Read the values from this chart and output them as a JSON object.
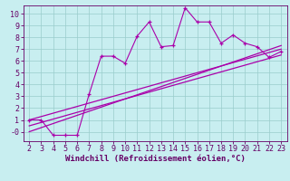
{
  "xlabel": "Windchill (Refroidissement éolien,°C)",
  "background_color": "#c8eef0",
  "line_color": "#aa00aa",
  "grid_color": "#99cccc",
  "spine_color": "#660066",
  "tick_color": "#660066",
  "label_color": "#660066",
  "x_scatter": [
    2,
    3,
    4,
    5,
    6,
    7,
    8,
    9,
    10,
    11,
    12,
    13,
    14,
    15,
    16,
    17,
    18,
    19,
    20,
    21,
    22,
    23
  ],
  "y_scatter": [
    1.0,
    1.0,
    -0.3,
    -0.3,
    -0.3,
    3.2,
    6.4,
    6.4,
    5.8,
    8.1,
    9.3,
    7.2,
    7.3,
    10.5,
    9.3,
    9.3,
    7.5,
    8.2,
    7.5,
    7.2,
    6.3,
    6.8
  ],
  "line1_x": [
    2,
    23
  ],
  "line1_y": [
    1.0,
    7.0
  ],
  "line2_x": [
    2,
    23
  ],
  "line2_y": [
    0.5,
    6.5
  ],
  "line3_x": [
    2,
    23
  ],
  "line3_y": [
    0.0,
    7.3
  ],
  "xlim": [
    1.5,
    23.5
  ],
  "ylim": [
    -0.8,
    10.7
  ],
  "xticks": [
    2,
    3,
    4,
    5,
    6,
    7,
    8,
    9,
    10,
    11,
    12,
    13,
    14,
    15,
    16,
    17,
    18,
    19,
    20,
    21,
    22,
    23
  ],
  "yticks": [
    0,
    1,
    2,
    3,
    4,
    5,
    6,
    7,
    8,
    9,
    10
  ],
  "ytick_labels": [
    "-0",
    "1",
    "2",
    "3",
    "4",
    "5",
    "6",
    "7",
    "8",
    "9",
    "10"
  ],
  "tick_fontsize": 6.0,
  "xlabel_fontsize": 6.5
}
